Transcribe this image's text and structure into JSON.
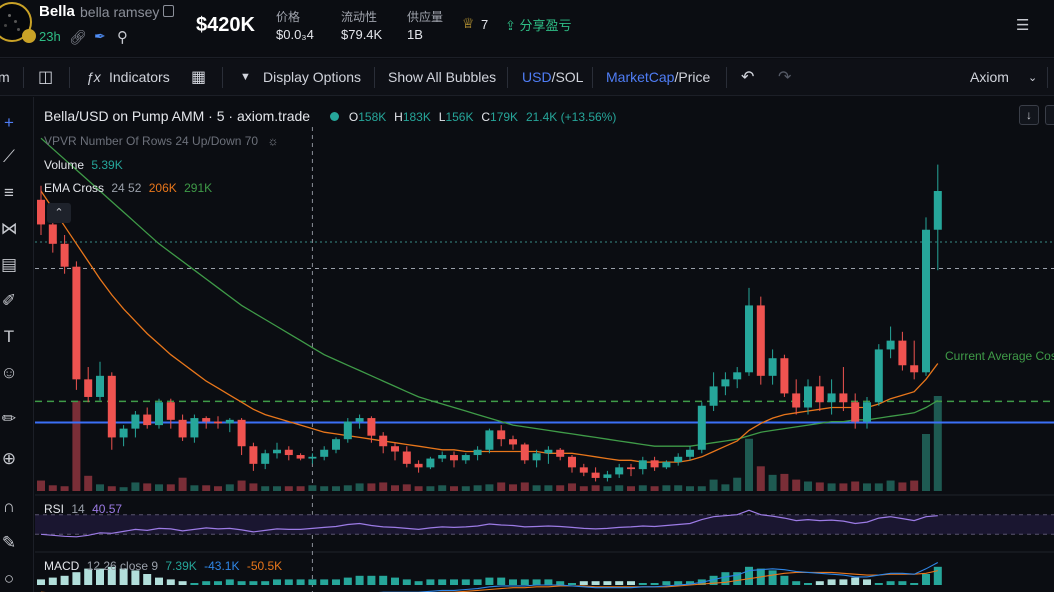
{
  "header": {
    "token_symbol": "Bella",
    "token_name": "bella ramsey",
    "age": "23h",
    "market_cap": "$420K",
    "stats": [
      {
        "label": "价格",
        "value": "$0.0₃4"
      },
      {
        "label": "流动性",
        "value": "$79.4K"
      },
      {
        "label": "供应量",
        "value": "1B"
      }
    ],
    "holders_count": "7",
    "share_label": "分享盈亏"
  },
  "toolbar": {
    "interval_partial": "m",
    "indicators_label": "Indicators",
    "display_options_label": "Display Options",
    "show_bubbles_label": "Show All Bubbles",
    "currency_usd": "USD",
    "currency_sol": "SOL",
    "mode_marketcap": "MarketCap",
    "mode_price": "Price",
    "sep": "/",
    "brand_label": "Axiom"
  },
  "chart_legend": {
    "pair_title": "Bella/USD on Pump AMM · 5 · axiom.trade",
    "open_label": "O",
    "open_value": "158K",
    "high_label": "H",
    "high_value": "183K",
    "low_label": "L",
    "low_value": "156K",
    "close_label": "C",
    "close_value": "179K",
    "change": "21.4K (+13.56%)",
    "vpvr": "VPVR Number Of Rows 24 Up/Down 70",
    "volume_label": "Volume",
    "volume_value": "5.39K",
    "ema_label": "EMA Cross",
    "ema_params": "24 52",
    "ema_fast_value": "206K",
    "ema_slow_value": "291K",
    "rsi_label": "RSI",
    "rsi_params": "14",
    "rsi_value": "40.57",
    "macd_label": "MACD",
    "macd_params": "12 26 close 9",
    "macd_value": "7.39K",
    "macd_signal": "-43.1K",
    "macd_hist": "-50.5K",
    "avg_cost_label": "Current Average Cost"
  },
  "colors": {
    "up": "#26a69a",
    "down": "#ef5350",
    "ema_fast": "#e8761b",
    "ema_slow": "#3f9b48",
    "avg_cost": "#3f9b48",
    "support": "#3b6ff5",
    "rsi": "#9c7be5",
    "macd_line": "#2f86e6",
    "signal_line": "#e8761b"
  },
  "chart_data": {
    "type": "candlestick",
    "candles": [
      [
        210,
        218,
        190,
        196
      ],
      [
        196,
        202,
        180,
        185
      ],
      [
        185,
        190,
        168,
        172
      ],
      [
        172,
        175,
        102,
        108
      ],
      [
        108,
        115,
        95,
        98
      ],
      [
        98,
        118,
        96,
        110
      ],
      [
        110,
        112,
        68,
        75
      ],
      [
        75,
        82,
        70,
        80
      ],
      [
        80,
        90,
        75,
        88
      ],
      [
        88,
        92,
        80,
        82
      ],
      [
        82,
        97,
        80,
        95
      ],
      [
        95,
        97,
        80,
        85
      ],
      [
        85,
        88,
        73,
        75
      ],
      [
        75,
        88,
        72,
        86
      ],
      [
        86,
        87,
        80,
        84
      ],
      [
        84,
        87,
        80,
        83
      ],
      [
        83,
        86,
        78,
        85
      ],
      [
        85,
        86,
        65,
        70
      ],
      [
        70,
        72,
        56,
        60
      ],
      [
        60,
        68,
        57,
        66
      ],
      [
        66,
        72,
        63,
        68
      ],
      [
        68,
        70,
        62,
        65
      ],
      [
        65,
        66,
        62,
        63
      ],
      [
        63,
        66,
        60,
        64
      ],
      [
        64,
        70,
        62,
        68
      ],
      [
        68,
        75,
        66,
        74
      ],
      [
        74,
        86,
        72,
        84
      ],
      [
        84,
        88,
        80,
        86
      ],
      [
        86,
        87,
        72,
        76
      ],
      [
        76,
        78,
        66,
        70
      ],
      [
        70,
        72,
        62,
        67
      ],
      [
        67,
        70,
        58,
        60
      ],
      [
        60,
        62,
        55,
        58
      ],
      [
        58,
        64,
        57,
        63
      ],
      [
        63,
        67,
        61,
        65
      ],
      [
        65,
        67,
        58,
        62
      ],
      [
        62,
        66,
        60,
        65
      ],
      [
        65,
        70,
        62,
        68
      ],
      [
        68,
        80,
        66,
        79
      ],
      [
        79,
        82,
        70,
        74
      ],
      [
        74,
        76,
        68,
        71
      ],
      [
        71,
        72,
        60,
        62
      ],
      [
        62,
        68,
        58,
        66
      ],
      [
        66,
        70,
        60,
        68
      ],
      [
        68,
        69,
        62,
        64
      ],
      [
        64,
        65,
        55,
        58
      ],
      [
        58,
        60,
        53,
        55
      ],
      [
        55,
        58,
        50,
        52
      ],
      [
        52,
        56,
        50,
        54
      ],
      [
        54,
        60,
        52,
        58
      ],
      [
        58,
        60,
        53,
        57
      ],
      [
        57,
        64,
        54,
        62
      ],
      [
        62,
        64,
        56,
        58
      ],
      [
        58,
        62,
        57,
        61
      ],
      [
        61,
        66,
        59,
        64
      ],
      [
        64,
        70,
        62,
        68
      ],
      [
        68,
        95,
        66,
        93
      ],
      [
        93,
        112,
        90,
        104
      ],
      [
        104,
        112,
        99,
        108
      ],
      [
        108,
        115,
        103,
        112
      ],
      [
        112,
        160,
        110,
        150
      ],
      [
        150,
        155,
        105,
        110
      ],
      [
        110,
        125,
        105,
        120
      ],
      [
        120,
        122,
        98,
        100
      ],
      [
        100,
        108,
        88,
        92
      ],
      [
        92,
        108,
        88,
        104
      ],
      [
        104,
        110,
        90,
        95
      ],
      [
        95,
        108,
        88,
        100
      ],
      [
        100,
        115,
        90,
        95
      ],
      [
        95,
        100,
        80,
        84
      ],
      [
        84,
        98,
        80,
        95
      ],
      [
        95,
        128,
        93,
        125
      ],
      [
        125,
        138,
        120,
        130
      ],
      [
        130,
        135,
        113,
        116
      ],
      [
        116,
        130,
        108,
        112
      ],
      [
        112,
        200,
        110,
        193
      ],
      [
        193,
        230,
        170,
        215
      ]
    ],
    "volumes": [
      11,
      6,
      5,
      95,
      16,
      7,
      5,
      4,
      9,
      8,
      7,
      7,
      14,
      6,
      6,
      5,
      7,
      11,
      8,
      5,
      5,
      5,
      5,
      6,
      5,
      5,
      6,
      8,
      8,
      9,
      6,
      7,
      5,
      5,
      6,
      5,
      5,
      6,
      7,
      9,
      7,
      9,
      6,
      6,
      6,
      8,
      5,
      6,
      5,
      6,
      5,
      6,
      5,
      6,
      6,
      5,
      5,
      12,
      7,
      14,
      55,
      26,
      17,
      18,
      12,
      10,
      9,
      8,
      8,
      10,
      8,
      8,
      11,
      9,
      11,
      60,
      100
    ],
    "ema_fast": [
      215,
      205,
      195,
      185,
      175,
      165,
      156,
      148,
      141,
      134,
      128,
      122,
      117,
      112,
      107,
      103,
      99,
      95,
      91,
      88,
      86,
      84,
      82,
      80,
      78,
      77,
      76,
      75,
      74,
      73,
      72,
      71,
      70,
      69,
      68,
      68,
      67,
      67,
      67,
      67,
      67,
      67,
      67,
      66,
      66,
      66,
      65,
      64,
      63,
      62,
      62,
      61,
      61,
      61,
      61,
      62,
      64,
      67,
      70,
      73,
      79,
      83,
      86,
      88,
      89,
      90,
      91,
      92,
      92,
      92,
      92,
      94,
      97,
      99,
      101,
      108,
      117
    ],
    "ema_slow": [
      245,
      239,
      233,
      227,
      221,
      215,
      209,
      203,
      197,
      191,
      185,
      180,
      175,
      170,
      165,
      160,
      155,
      150,
      146,
      142,
      138,
      134,
      130,
      126,
      122,
      119,
      116,
      113,
      110,
      107,
      104,
      101,
      98,
      96,
      94,
      92,
      90,
      88,
      86,
      84,
      82,
      81,
      80,
      79,
      78,
      77,
      76,
      75,
      74,
      73,
      72,
      71,
      70,
      70,
      70,
      70,
      71,
      72,
      73,
      74,
      76,
      78,
      79,
      80,
      81,
      82,
      83,
      84,
      84,
      85,
      85,
      86,
      87,
      88,
      89,
      92,
      96
    ],
    "rsi": [
      30,
      28,
      26,
      25,
      28,
      33,
      32,
      36,
      40,
      38,
      42,
      41,
      37,
      40,
      43,
      41,
      42,
      39,
      35,
      38,
      41,
      40,
      40,
      42,
      44,
      46,
      50,
      52,
      48,
      45,
      44,
      42,
      40,
      43,
      45,
      44,
      45,
      47,
      51,
      49,
      48,
      45,
      46,
      47,
      46,
      44,
      42,
      41,
      42,
      44,
      45,
      47,
      46,
      48,
      50,
      52,
      60,
      66,
      68,
      70,
      79,
      70,
      67,
      63,
      58,
      60,
      58,
      59,
      57,
      52,
      55,
      63,
      66,
      62,
      58,
      66,
      68
    ],
    "macd": [
      -10,
      -12,
      -14,
      -18,
      -22,
      -24,
      -27,
      -28,
      -28,
      -27,
      -26,
      -25,
      -25,
      -24,
      -23,
      -22,
      -21,
      -21,
      -21,
      -20,
      -19,
      -18,
      -17,
      -16,
      -15,
      -14,
      -12,
      -10,
      -9,
      -8,
      -8,
      -8,
      -8,
      -7,
      -6,
      -6,
      -5,
      -4,
      -2,
      -1,
      -1,
      -1,
      0,
      0,
      0,
      -1,
      -2,
      -3,
      -3,
      -3,
      -3,
      -2,
      -2,
      -1,
      0,
      1,
      3,
      6,
      9,
      11,
      16,
      17,
      18,
      17,
      15,
      14,
      13,
      12,
      11,
      9,
      9,
      11,
      13,
      13,
      12,
      18,
      25
    ],
    "signal": [
      -8,
      -9,
      -10,
      -12,
      -14,
      -16,
      -18,
      -20,
      -21,
      -22,
      -23,
      -23,
      -24,
      -24,
      -24,
      -23,
      -23,
      -22,
      -22,
      -21,
      -21,
      -20,
      -19,
      -18,
      -17,
      -16,
      -15,
      -14,
      -13,
      -12,
      -11,
      -10,
      -9,
      -9,
      -8,
      -8,
      -7,
      -6,
      -5,
      -4,
      -3,
      -3,
      -2,
      -2,
      -1,
      -1,
      -1,
      -2,
      -2,
      -2,
      -2,
      -2,
      -2,
      -2,
      -1,
      0,
      1,
      2,
      3,
      5,
      7,
      9,
      11,
      13,
      14,
      14,
      14,
      14,
      13,
      12,
      11,
      11,
      12,
      12,
      12,
      13,
      16
    ],
    "ylim": [
      44,
      240
    ],
    "avg_cost": 95.5,
    "support_level": 83.5,
    "hline_last": 171,
    "hline_top": 186,
    "crosshair_index": 23
  }
}
